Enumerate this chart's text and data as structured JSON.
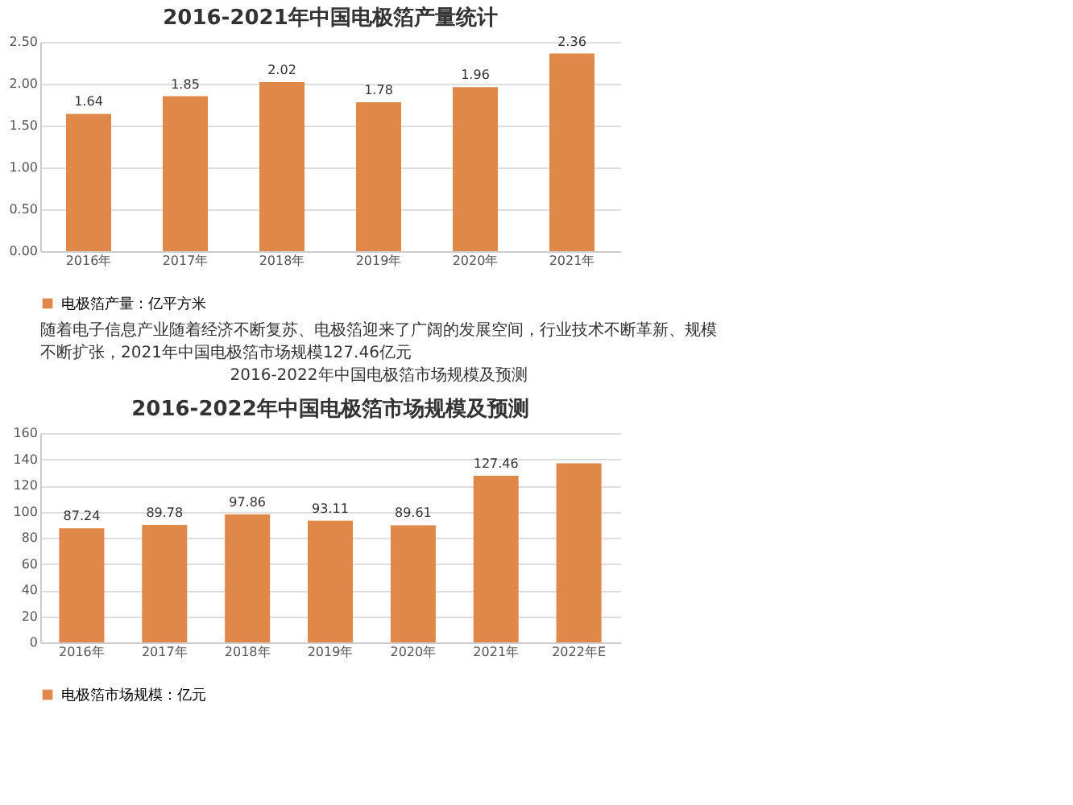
{
  "chart_data": [
    {
      "type": "bar",
      "title": "2016-2021年中国电极箔产量统计",
      "categories": [
        "2016年",
        "2017年",
        "2018年",
        "2019年",
        "2020年",
        "2021年"
      ],
      "series": [
        {
          "name": "电极箔产量：亿平方米",
          "color": "#e0874a",
          "values": [
            1.64,
            1.85,
            2.02,
            1.78,
            1.96,
            2.36
          ]
        }
      ],
      "ylim": [
        0,
        2.5
      ],
      "yticks": [
        {
          "value": 0,
          "label": "0.00"
        },
        {
          "value": 0.5,
          "label": "0.50"
        },
        {
          "value": 1,
          "label": "1.00"
        },
        {
          "value": 1.5,
          "label": "1.50"
        },
        {
          "value": 2,
          "label": "2.00"
        },
        {
          "value": 2.5,
          "label": "2.50"
        }
      ],
      "grid": "y",
      "legend": "bottom",
      "data_labels": true
    },
    {
      "type": "bar",
      "title": "2016-2022年中国电极箔市场规模及预测",
      "subtitle": "2016-2022年中国电极箔市场规模及预测",
      "annotations": [
        "随着电子信息产业随着经济不断复苏、电极箔迎来了广阔的发展空间，行业技术不断革新、规模不断扩张，2021年中国电极箔市场规模127.46亿元"
      ],
      "categories": [
        "2016年",
        "2017年",
        "2018年",
        "2019年",
        "2020年",
        "2021年",
        "2022年E"
      ],
      "series": [
        {
          "name": "电极箔市场规模：亿元",
          "color": "#e0874a",
          "values": [
            87.24,
            89.78,
            97.86,
            93.11,
            89.61,
            127.46,
            137
          ],
          "value_labels": [
            "87.24",
            "89.78",
            "97.86",
            "93.11",
            "89.61",
            "127.46",
            null
          ]
        }
      ],
      "ylim": [
        0,
        160
      ],
      "yticks": [
        0,
        20,
        40,
        60,
        80,
        100,
        120,
        140,
        160
      ],
      "grid": "y",
      "legend": "bottom"
    }
  ]
}
